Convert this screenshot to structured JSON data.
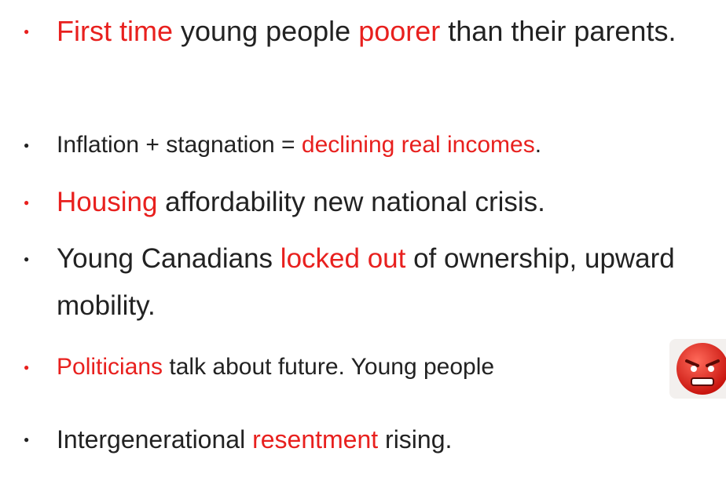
{
  "bullets": [
    {
      "bullet_color": "#e8201e",
      "parts": [
        {
          "text": "First time",
          "color": "#e8201e"
        },
        {
          "text": " young people ",
          "color": "#222222"
        },
        {
          "text": "poorer",
          "color": "#e8201e"
        },
        {
          "text": " than their parents.",
          "color": "#222222"
        }
      ]
    },
    {
      "bullet_color": "#222222",
      "parts": [
        {
          "text": "Inflation + stagnation = ",
          "color": "#222222"
        },
        {
          "text": "declining real incomes",
          "color": "#e8201e"
        },
        {
          "text": ".",
          "color": "#222222"
        }
      ]
    },
    {
      "bullet_color": "#e8201e",
      "parts": [
        {
          "text": "Housing",
          "color": "#e8201e"
        },
        {
          "text": " affordability new national crisis.",
          "color": "#222222"
        }
      ]
    },
    {
      "bullet_color": "#222222",
      "parts": [
        {
          "text": "Young Canadians ",
          "color": "#222222"
        },
        {
          "text": "locked out",
          "color": "#e8201e"
        },
        {
          "text": " of ownership, upward mobility.",
          "color": "#222222"
        }
      ]
    },
    {
      "bullet_color": "#e8201e",
      "parts": [
        {
          "text": "Politicians",
          "color": "#e8201e"
        },
        {
          "text": " talk about future. Young people",
          "color": "#222222"
        }
      ]
    },
    {
      "bullet_color": "#222222",
      "parts": [
        {
          "text": "Intergenerational ",
          "color": "#222222"
        },
        {
          "text": "resentment",
          "color": "#e8201e"
        },
        {
          "text": " rising.",
          "color": "#222222"
        }
      ]
    }
  ]
}
